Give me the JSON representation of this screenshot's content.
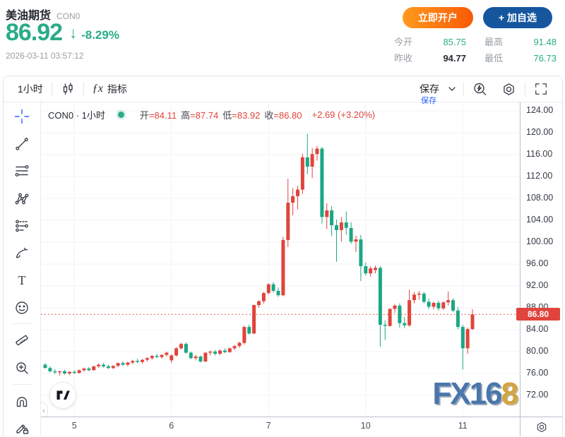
{
  "header": {
    "title": "美油期货",
    "symbol": "CON0",
    "price": "86.92",
    "arrow": "↓",
    "change_percent": "-8.29%",
    "timestamp": "2026-03-11 03:57:12",
    "open_account": "立即开户",
    "add_watchlist": "+ 加自选",
    "stats": [
      {
        "label": "今开",
        "value": "85.75",
        "tone": "green"
      },
      {
        "label": "最高",
        "value": "91.48",
        "tone": "green"
      },
      {
        "label": "昨收",
        "value": "94.77",
        "tone": "dark"
      },
      {
        "label": "最低",
        "value": "76.73",
        "tone": "green"
      }
    ]
  },
  "toolbar": {
    "interval": "1小时",
    "fx": "ƒx",
    "indicators": "指标",
    "save": "保存",
    "save_tooltip": "保存"
  },
  "sidebar_tools": [
    {
      "name": "crosshair",
      "active": true
    },
    {
      "name": "trend-line"
    },
    {
      "name": "fib-retracement"
    },
    {
      "name": "xabcd-pattern"
    },
    {
      "name": "forecast"
    },
    {
      "name": "brush"
    },
    {
      "name": "text"
    },
    {
      "name": "emoji"
    },
    {
      "name": "ruler"
    },
    {
      "name": "zoom-in"
    },
    {
      "name": "magnet"
    },
    {
      "name": "draw-lock"
    }
  ],
  "chart": {
    "legend": {
      "series": "CON0 · 1小时",
      "pairs": [
        {
          "label": "开",
          "value": "=84.11"
        },
        {
          "label": "高",
          "value": "=87.74"
        },
        {
          "label": "低",
          "value": "=83.92"
        },
        {
          "label": "收",
          "value": "=86.80"
        }
      ],
      "change": "+2.69 (+3.20%)"
    },
    "current_price_label": "86.80",
    "watermark_main": "FX16",
    "watermark_accent": "8"
  },
  "colors": {
    "up": "#e0443c",
    "down": "#1ba784",
    "grid": "#f0f3fa",
    "accent_green": "#2bab87"
  },
  "chart_data": {
    "type": "candlestick",
    "title": "CON0 · 1小时",
    "interval": "1 hour",
    "y_ticks": [
      72,
      76,
      80,
      84,
      88,
      92,
      96,
      100,
      104,
      108,
      112,
      116,
      120,
      124
    ],
    "y_range": [
      68.13,
      125.55
    ],
    "current_price": 86.8,
    "x_labels": [
      "5",
      "6",
      "7",
      "10",
      "11"
    ],
    "x_label_candle_idx": [
      6,
      26,
      46,
      66,
      86
    ],
    "last_candle": {
      "open": 84.11,
      "high": 87.74,
      "low": 83.92,
      "close": 86.8,
      "change": "+2.69 (+3.20%)"
    },
    "candles": [
      [
        77.6,
        77.9,
        76.9,
        77.0
      ],
      [
        77.0,
        77.3,
        76.2,
        76.4
      ],
      [
        76.4,
        76.8,
        75.9,
        76.2
      ],
      [
        76.2,
        76.5,
        75.6,
        76.4
      ],
      [
        76.4,
        76.7,
        75.8,
        76.0
      ],
      [
        76.0,
        76.4,
        75.7,
        76.3
      ],
      [
        76.3,
        76.6,
        75.9,
        76.1
      ],
      [
        76.1,
        76.7,
        76.0,
        76.6
      ],
      [
        76.6,
        77.1,
        76.3,
        76.9
      ],
      [
        76.9,
        77.2,
        76.4,
        76.6
      ],
      [
        76.6,
        77.4,
        76.5,
        77.3
      ],
      [
        77.3,
        77.8,
        77.0,
        77.6
      ],
      [
        77.6,
        77.9,
        77.1,
        77.3
      ],
      [
        77.3,
        77.6,
        76.8,
        77.0
      ],
      [
        77.0,
        77.5,
        76.8,
        77.4
      ],
      [
        77.4,
        78.0,
        77.2,
        77.9
      ],
      [
        77.9,
        78.2,
        77.4,
        77.6
      ],
      [
        77.6,
        78.1,
        77.3,
        78.0
      ],
      [
        78.0,
        78.5,
        77.7,
        78.3
      ],
      [
        78.3,
        78.7,
        77.9,
        78.1
      ],
      [
        78.1,
        78.6,
        77.8,
        78.5
      ],
      [
        78.5,
        79.0,
        78.2,
        78.8
      ],
      [
        78.8,
        79.4,
        78.5,
        79.2
      ],
      [
        79.2,
        79.6,
        78.8,
        79.0
      ],
      [
        79.0,
        79.5,
        78.7,
        79.4
      ],
      [
        79.4,
        80.0,
        79.1,
        79.8
      ],
      [
        78.4,
        79.5,
        77.9,
        79.3
      ],
      [
        79.3,
        80.8,
        79.1,
        80.6
      ],
      [
        80.6,
        81.6,
        80.4,
        81.4
      ],
      [
        81.4,
        81.7,
        79.6,
        79.8
      ],
      [
        79.8,
        80.0,
        78.6,
        78.8
      ],
      [
        78.8,
        79.4,
        78.4,
        79.1
      ],
      [
        79.1,
        79.3,
        78.0,
        78.2
      ],
      [
        78.2,
        79.9,
        78.1,
        79.8
      ],
      [
        79.8,
        80.2,
        79.3,
        80.0
      ],
      [
        80.0,
        80.3,
        79.3,
        79.6
      ],
      [
        79.6,
        80.4,
        79.4,
        80.2
      ],
      [
        80.2,
        80.6,
        79.7,
        79.9
      ],
      [
        79.9,
        80.7,
        79.8,
        80.6
      ],
      [
        80.6,
        81.2,
        80.3,
        81.0
      ],
      [
        81.0,
        81.8,
        80.7,
        81.6
      ],
      [
        81.6,
        84.7,
        81.3,
        84.5
      ],
      [
        84.5,
        84.9,
        83.1,
        83.3
      ],
      [
        83.3,
        88.6,
        83.2,
        88.5
      ],
      [
        88.5,
        89.4,
        88.0,
        89.2
      ],
      [
        89.2,
        90.9,
        88.8,
        90.7
      ],
      [
        90.7,
        92.5,
        90.4,
        92.3
      ],
      [
        92.3,
        92.7,
        90.8,
        91.1
      ],
      [
        91.1,
        91.7,
        90.0,
        90.3
      ],
      [
        90.3,
        101.0,
        90.1,
        100.4
      ],
      [
        100.4,
        111.6,
        99.1,
        107.2
      ],
      [
        107.2,
        109.9,
        104.9,
        108.4
      ],
      [
        108.4,
        110.3,
        106.0,
        109.6
      ],
      [
        109.6,
        116.2,
        108.8,
        115.5
      ],
      [
        115.5,
        119.8,
        112.4,
        113.8
      ],
      [
        113.8,
        117.2,
        111.7,
        116.1
      ],
      [
        116.1,
        117.6,
        114.9,
        117.1
      ],
      [
        117.1,
        117.4,
        103.4,
        104.6
      ],
      [
        104.6,
        107.1,
        102.4,
        105.8
      ],
      [
        105.8,
        106.6,
        101.1,
        103.1
      ],
      [
        103.1,
        104.1,
        96.4,
        102.2
      ],
      [
        102.2,
        104.6,
        100.1,
        103.6
      ],
      [
        103.6,
        105.6,
        101.4,
        102.6
      ],
      [
        102.6,
        103.6,
        99.7,
        100.1
      ],
      [
        100.1,
        101.2,
        98.2,
        100.5
      ],
      [
        100.5,
        101.3,
        92.9,
        95.6
      ],
      [
        95.6,
        96.3,
        93.9,
        94.3
      ],
      [
        94.3,
        95.6,
        93.7,
        95.2
      ],
      [
        94.9,
        95.7,
        94.3,
        95.3
      ],
      [
        95.3,
        95.6,
        80.9,
        84.9
      ],
      [
        84.9,
        85.7,
        82.1,
        84.7
      ],
      [
        84.7,
        87.9,
        84.5,
        87.8
      ],
      [
        87.8,
        88.7,
        87.1,
        88.4
      ],
      [
        88.4,
        88.8,
        84.4,
        85.2
      ],
      [
        85.2,
        86.3,
        84.3,
        84.8
      ],
      [
        84.8,
        91.3,
        84.5,
        89.4
      ],
      [
        89.4,
        90.9,
        88.8,
        90.4
      ],
      [
        90.4,
        91.1,
        89.5,
        90.6
      ],
      [
        90.6,
        90.9,
        88.8,
        89.1
      ],
      [
        89.1,
        89.7,
        87.8,
        88.2
      ],
      [
        88.2,
        89.1,
        87.7,
        88.9
      ],
      [
        88.9,
        89.3,
        87.5,
        87.9
      ],
      [
        87.9,
        89.2,
        87.6,
        89.0
      ],
      [
        89.0,
        91.0,
        88.4,
        89.4
      ],
      [
        89.4,
        89.7,
        87.2,
        87.5
      ],
      [
        87.5,
        88.1,
        84.1,
        84.5
      ],
      [
        84.5,
        84.9,
        76.73,
        80.6
      ],
      [
        80.6,
        84.4,
        79.6,
        84.1
      ],
      [
        84.11,
        87.74,
        83.92,
        86.8
      ]
    ]
  }
}
